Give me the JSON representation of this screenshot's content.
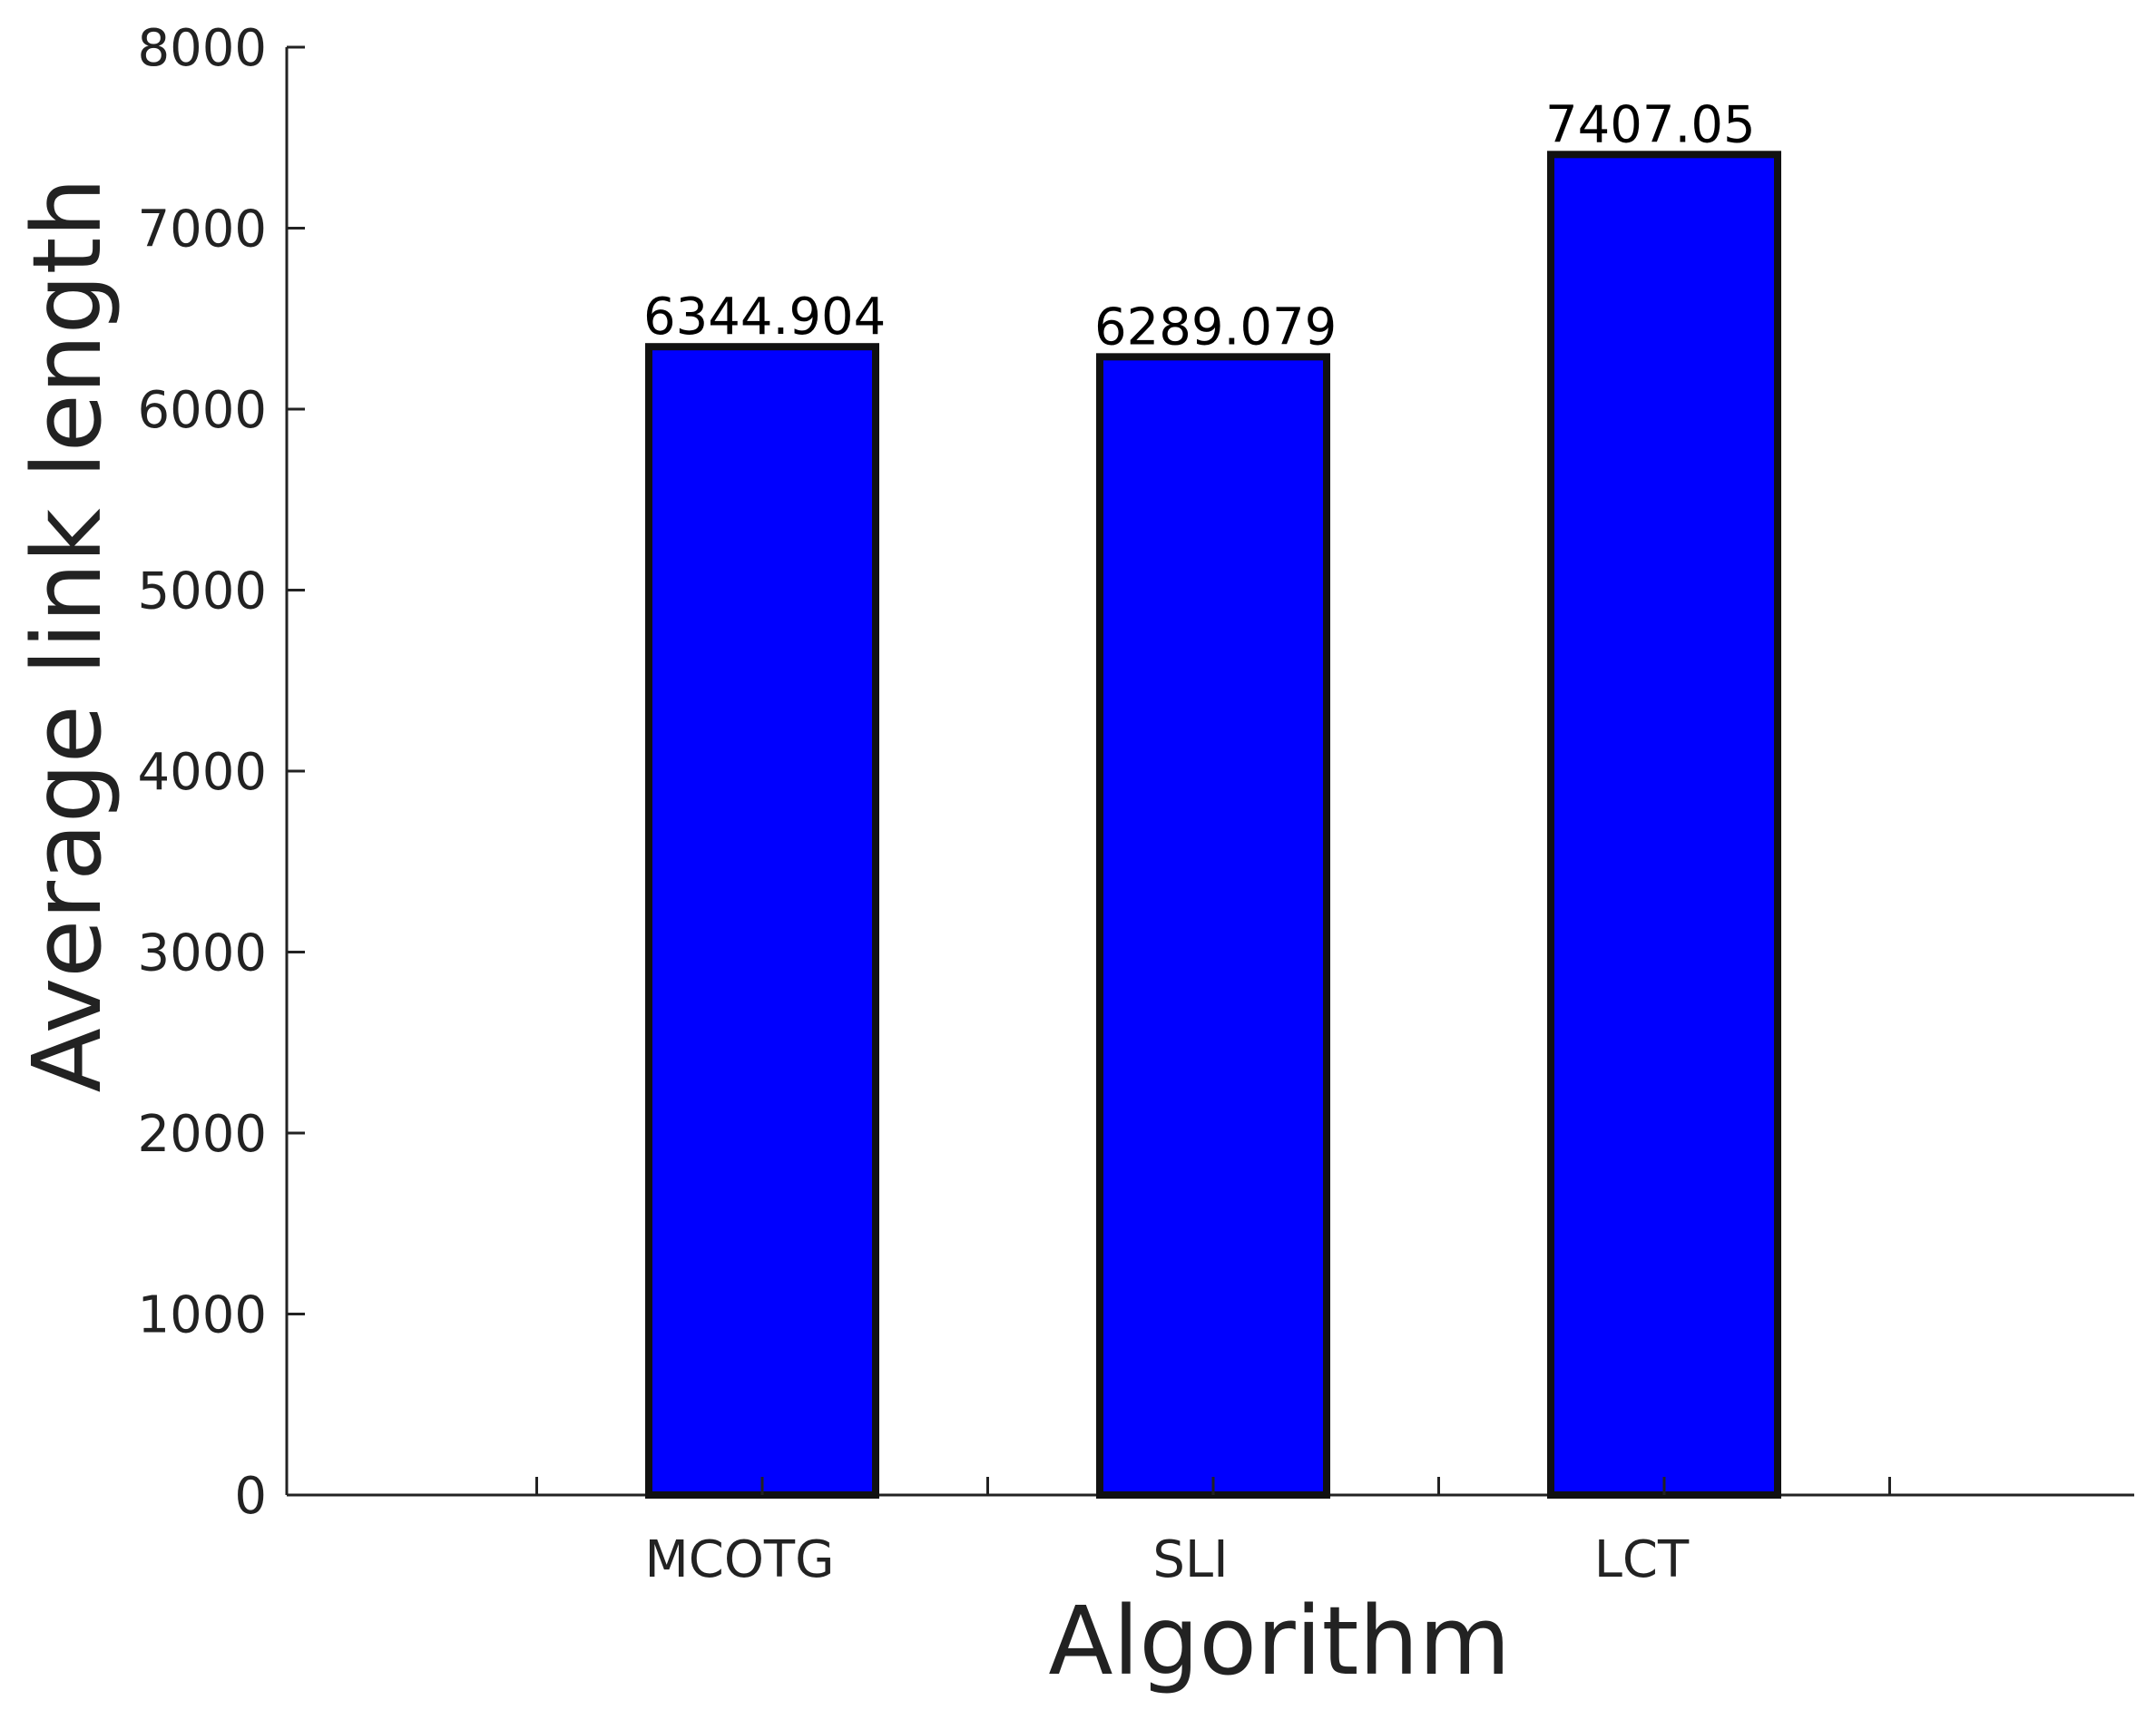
{
  "chart_data": {
    "type": "bar",
    "categories": [
      "MCOTG",
      "SLI",
      "LCT"
    ],
    "values": [
      6344.904,
      6289.079,
      7407.05
    ],
    "data_labels": [
      "6344.904",
      "6289.079",
      "7407.05"
    ],
    "xlabel": "Algorithm",
    "ylabel": "Average link length",
    "ylim": [
      0,
      8000
    ],
    "yticks": [
      0,
      1000,
      2000,
      3000,
      4000,
      5000,
      6000,
      7000,
      8000
    ],
    "grid": false,
    "legend": "none",
    "colors": {
      "bar_fill": "#0000ff",
      "bar_edge": "#111111",
      "axis": "#222222"
    }
  }
}
